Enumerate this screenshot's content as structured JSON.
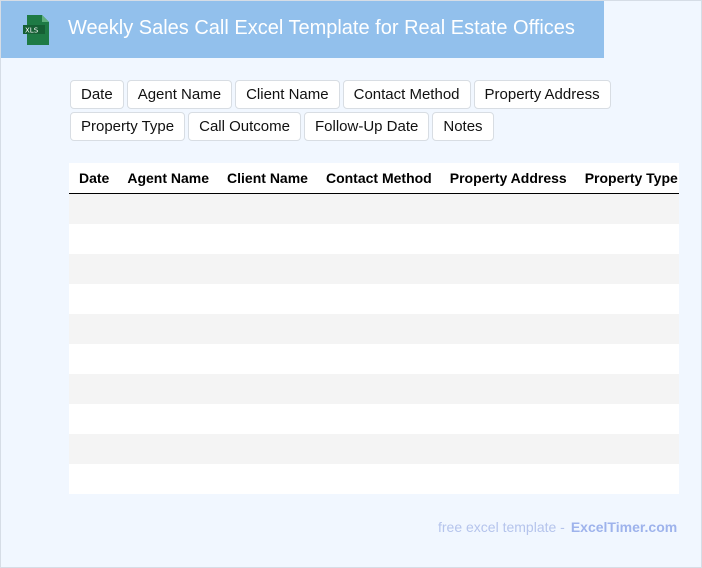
{
  "header": {
    "title": "Weekly Sales Call Excel Template for Real Estate Offices",
    "icon": "xls-file-icon",
    "icon_label": "XLS",
    "color": "#92c0ec"
  },
  "fields": [
    "Date",
    "Agent Name",
    "Client Name",
    "Contact Method",
    "Property Address",
    "Property Type",
    "Call Outcome",
    "Follow-Up Date",
    "Notes"
  ],
  "table": {
    "columns": [
      "Date",
      "Agent Name",
      "Client Name",
      "Contact Method",
      "Property Address",
      "Property Type",
      "Call Outcome",
      "Follow-Up Date",
      "Notes"
    ],
    "rows": 10
  },
  "footer": {
    "text": "free excel template -",
    "brand": "ExcelTimer.com"
  }
}
